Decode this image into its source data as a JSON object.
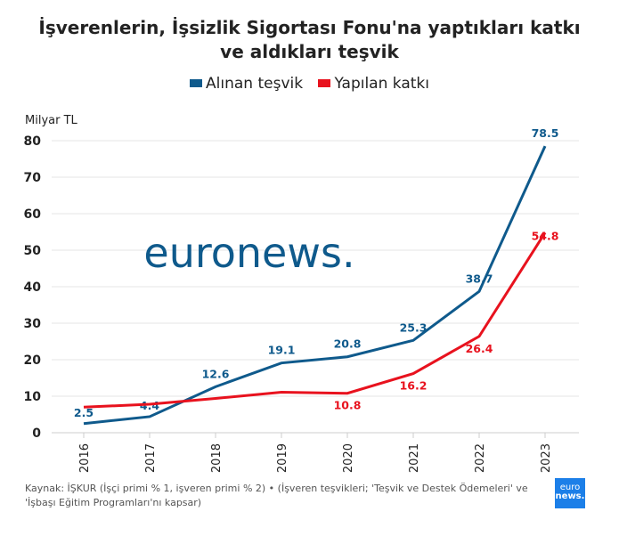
{
  "title_line1": "İşverenlerin, İşsizlik Sigortası Fonu'na yaptıkları katkı",
  "title_line2": "ve aldıkları teşvik",
  "unit_label": "Milyar TL",
  "source": "Kaynak: İŞKUR (İşçi primi % 1, işveren primi % 2) • (İşveren teşvikleri; 'Teşvik ve Destek Ödemeleri' ve 'İşbaşı Eğitim Programları'nı kapsar)",
  "watermark": "euronews.",
  "logo": {
    "line1": "euro",
    "line2": "news."
  },
  "chart_data": {
    "type": "line",
    "categories": [
      "2016",
      "2017",
      "2018",
      "2019",
      "2020",
      "2021",
      "2022",
      "2023"
    ],
    "ylim": [
      0,
      80
    ],
    "yticks": [
      0,
      10,
      20,
      30,
      40,
      50,
      60,
      70,
      80
    ],
    "grid": true,
    "legend": "top",
    "series": [
      {
        "name": "Alınan teşvik",
        "color": "#0f5a8c",
        "values": [
          2.5,
          4.4,
          12.6,
          19.1,
          20.8,
          25.3,
          38.7,
          78.5
        ],
        "labels": [
          "2.5",
          "4.4",
          "12.6",
          "19.1",
          "20.8",
          "25.3",
          "38.7",
          "78.5"
        ]
      },
      {
        "name": "Yapılan katkı",
        "color": "#e8121e",
        "values": [
          7.0,
          7.8,
          9.4,
          11.1,
          10.8,
          16.2,
          26.4,
          54.8
        ],
        "labels": [
          "",
          "",
          "",
          "",
          "10.8",
          "16.2",
          "26.4",
          "54.8"
        ]
      }
    ]
  }
}
